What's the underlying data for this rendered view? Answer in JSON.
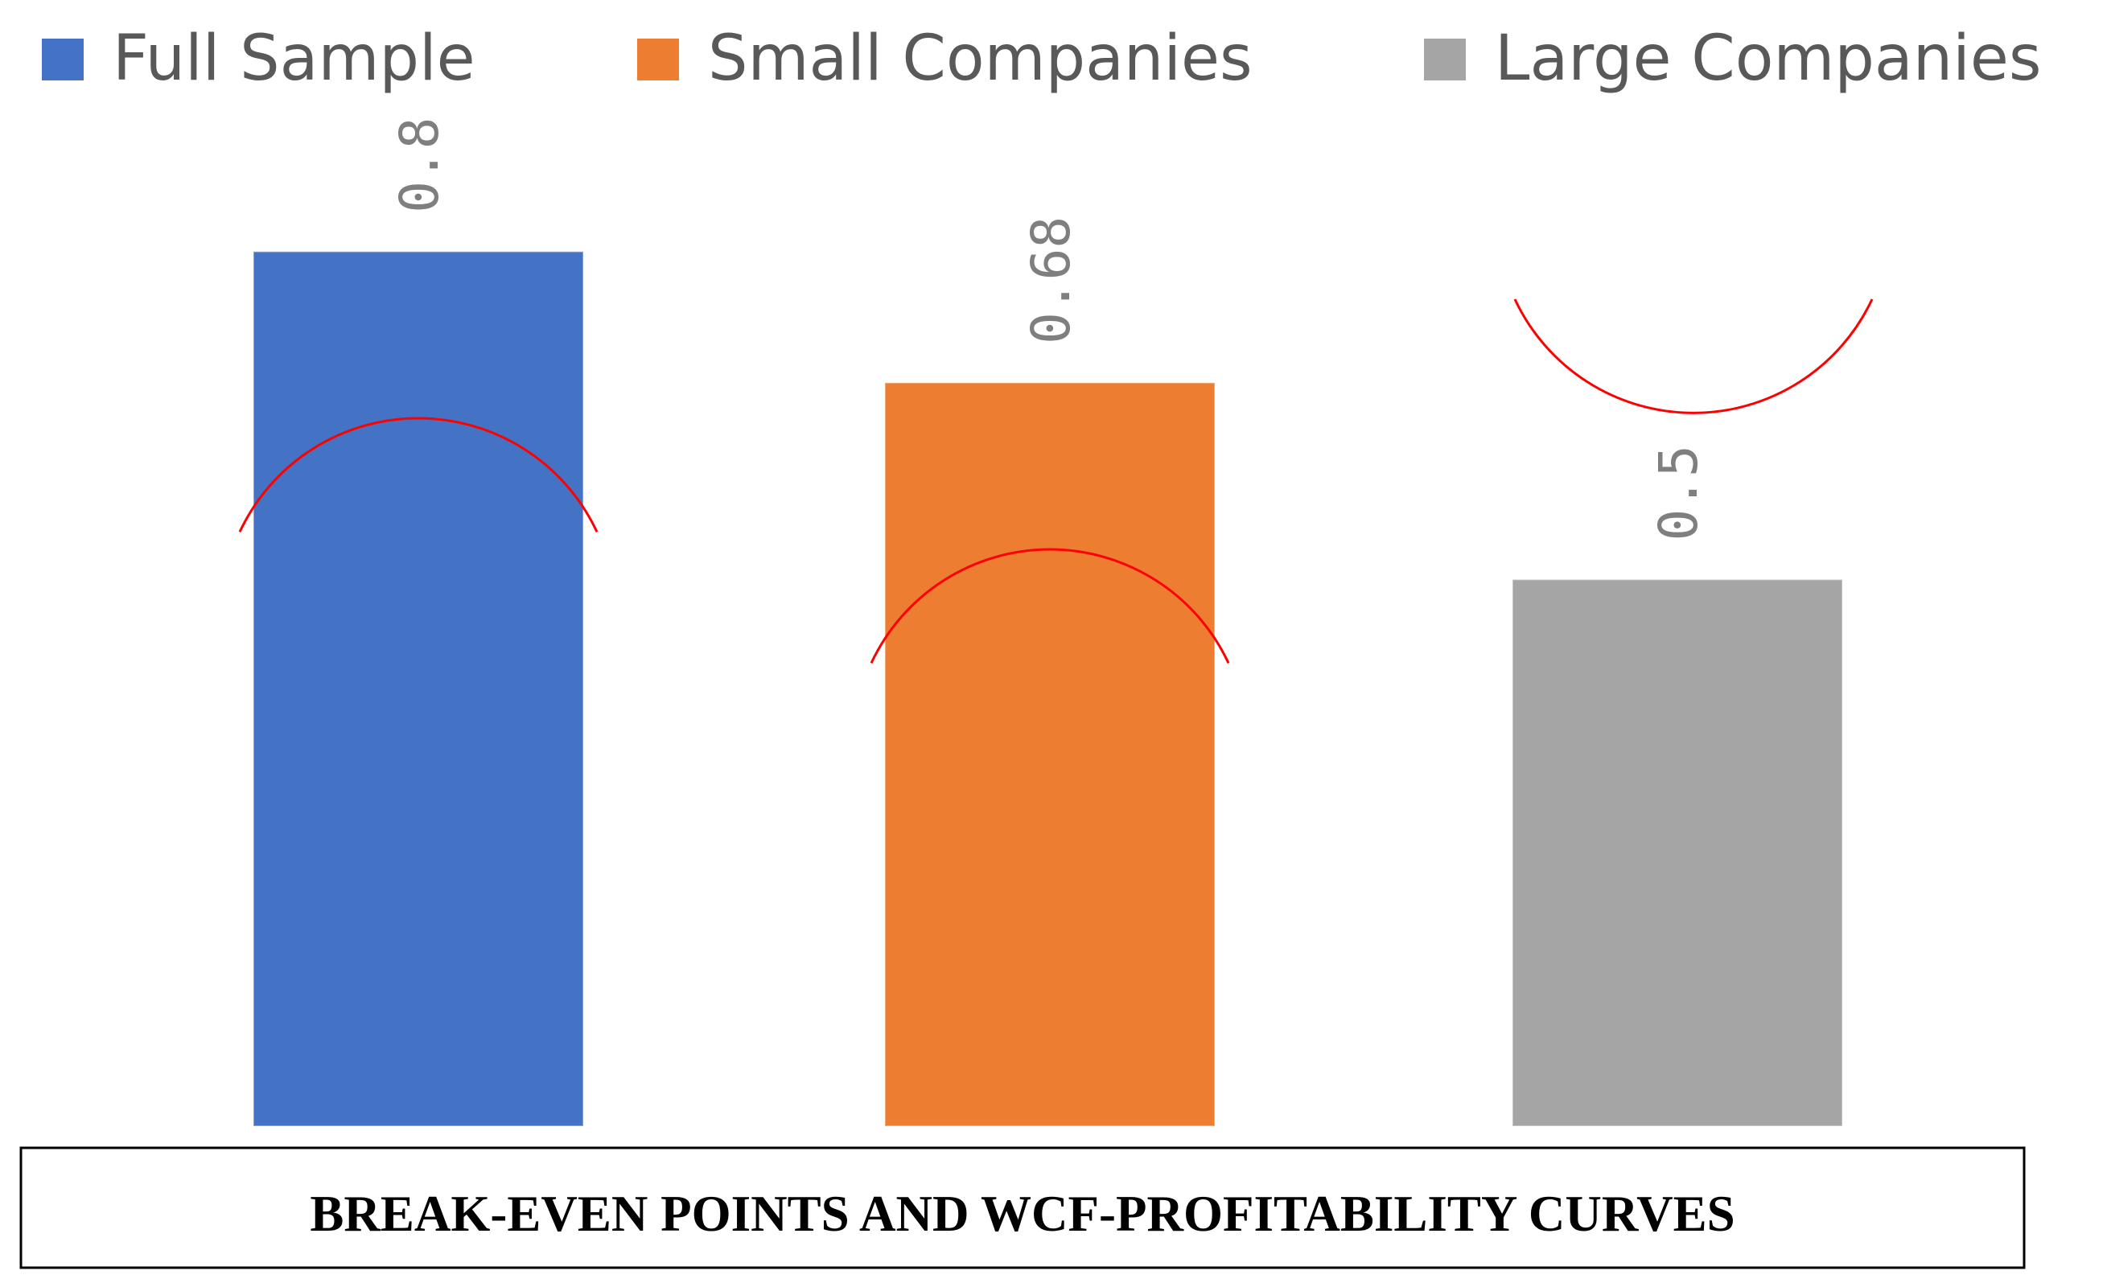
{
  "chart_data": {
    "type": "bar",
    "title": "BREAK-EVEN POINTS AND WCF-PROFITABILITY CURVES",
    "xlabel": "",
    "ylabel": "",
    "ylim": [
      0,
      1
    ],
    "grid": false,
    "legend_position": "top",
    "series": [
      {
        "name": "Full Sample",
        "value": 0.8,
        "label": "0.8",
        "color": "#4472c4",
        "curve": "concave"
      },
      {
        "name": "Small Companies",
        "value": 0.68,
        "label": "0.68",
        "color": "#ed7d31",
        "curve": "concave"
      },
      {
        "name": "Large Companies",
        "value": 0.5,
        "label": "0.5",
        "color": "#a5a5a5",
        "curve": "convex"
      }
    ],
    "curve_color": "#ff0000"
  }
}
